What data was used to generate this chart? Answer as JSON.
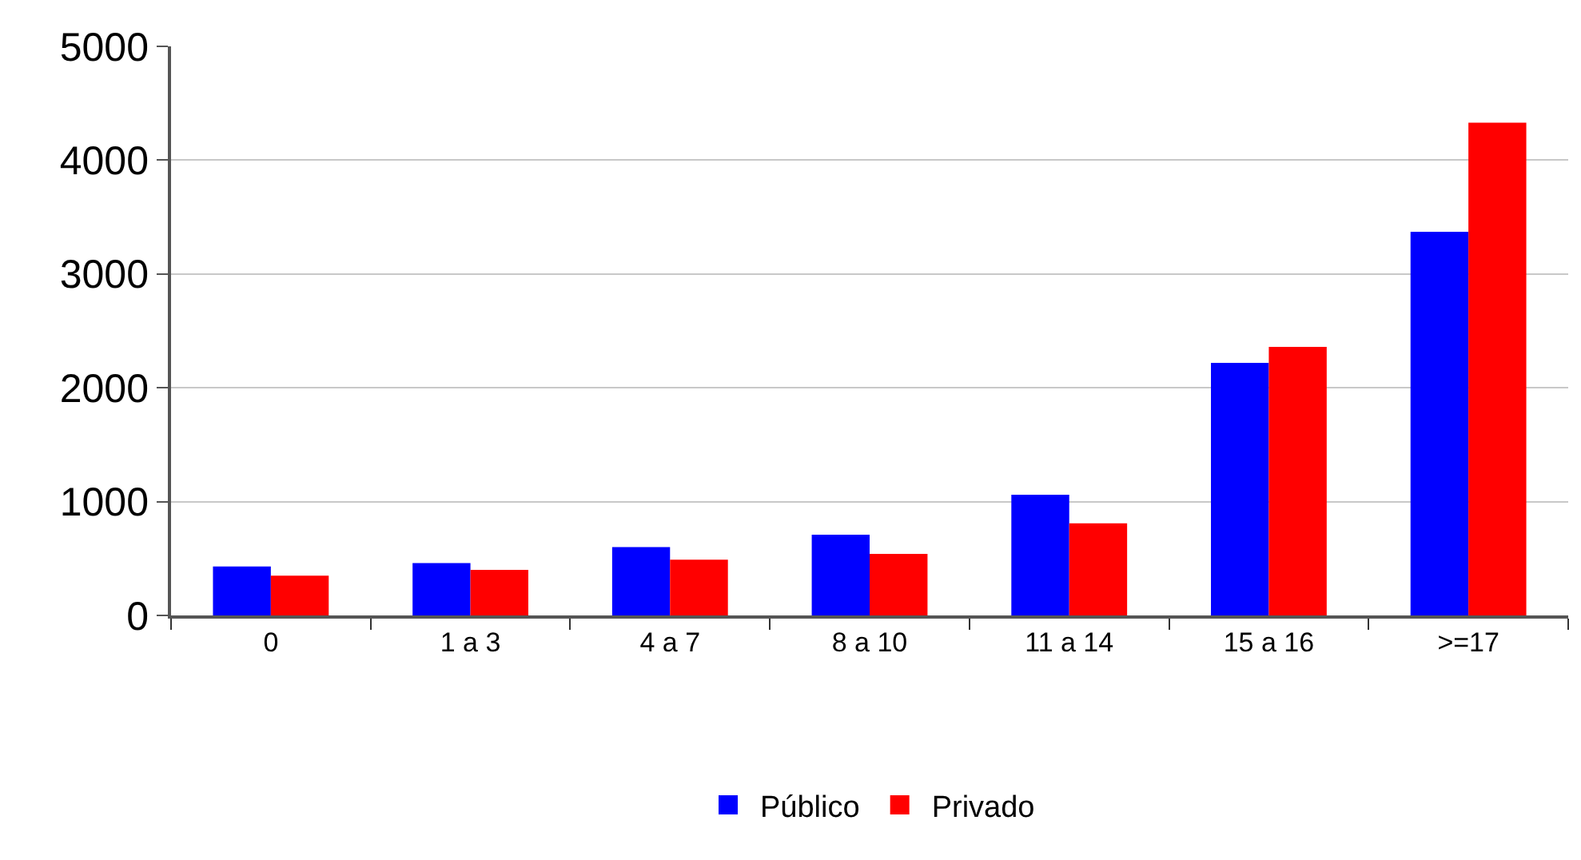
{
  "chart_data": {
    "type": "bar",
    "categories": [
      "0",
      "1 a 3",
      "4 a 7",
      "8 a 10",
      "11 a 14",
      "15 a 16",
      ">=17"
    ],
    "series": [
      {
        "name": "Público",
        "color": "#0000ff",
        "values": [
          430,
          460,
          600,
          710,
          1060,
          2220,
          3370
        ]
      },
      {
        "name": "Privado",
        "color": "#ff0000",
        "values": [
          350,
          400,
          490,
          540,
          810,
          2360,
          4330
        ]
      }
    ],
    "ylim": [
      0,
      5000
    ],
    "yticks": [
      0,
      1000,
      2000,
      3000,
      4000,
      5000
    ],
    "grid": "y",
    "legend": "bottom"
  }
}
